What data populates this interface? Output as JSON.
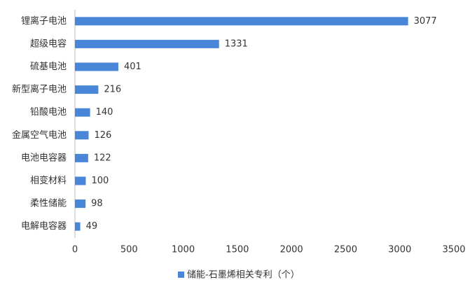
{
  "chart_data": {
    "type": "bar",
    "orientation": "horizontal",
    "categories": [
      "锂离子电池",
      "超级电容",
      "硫基电池",
      "新型离子电池",
      "铅酸电池",
      "金属空气电池",
      "电池电容器",
      "相变材料",
      "柔性储能",
      "电解电容器"
    ],
    "series": [
      {
        "name": "储能-石墨烯相关专利（个）",
        "color": "#4a86d8",
        "values": [
          3077,
          1331,
          401,
          216,
          140,
          126,
          122,
          100,
          98,
          49
        ]
      }
    ],
    "xlim": [
      0,
      3500
    ],
    "xticks": [
      0,
      500,
      1000,
      1500,
      2000,
      2500,
      3000,
      3500
    ],
    "legend": "bottom",
    "grid": false
  }
}
